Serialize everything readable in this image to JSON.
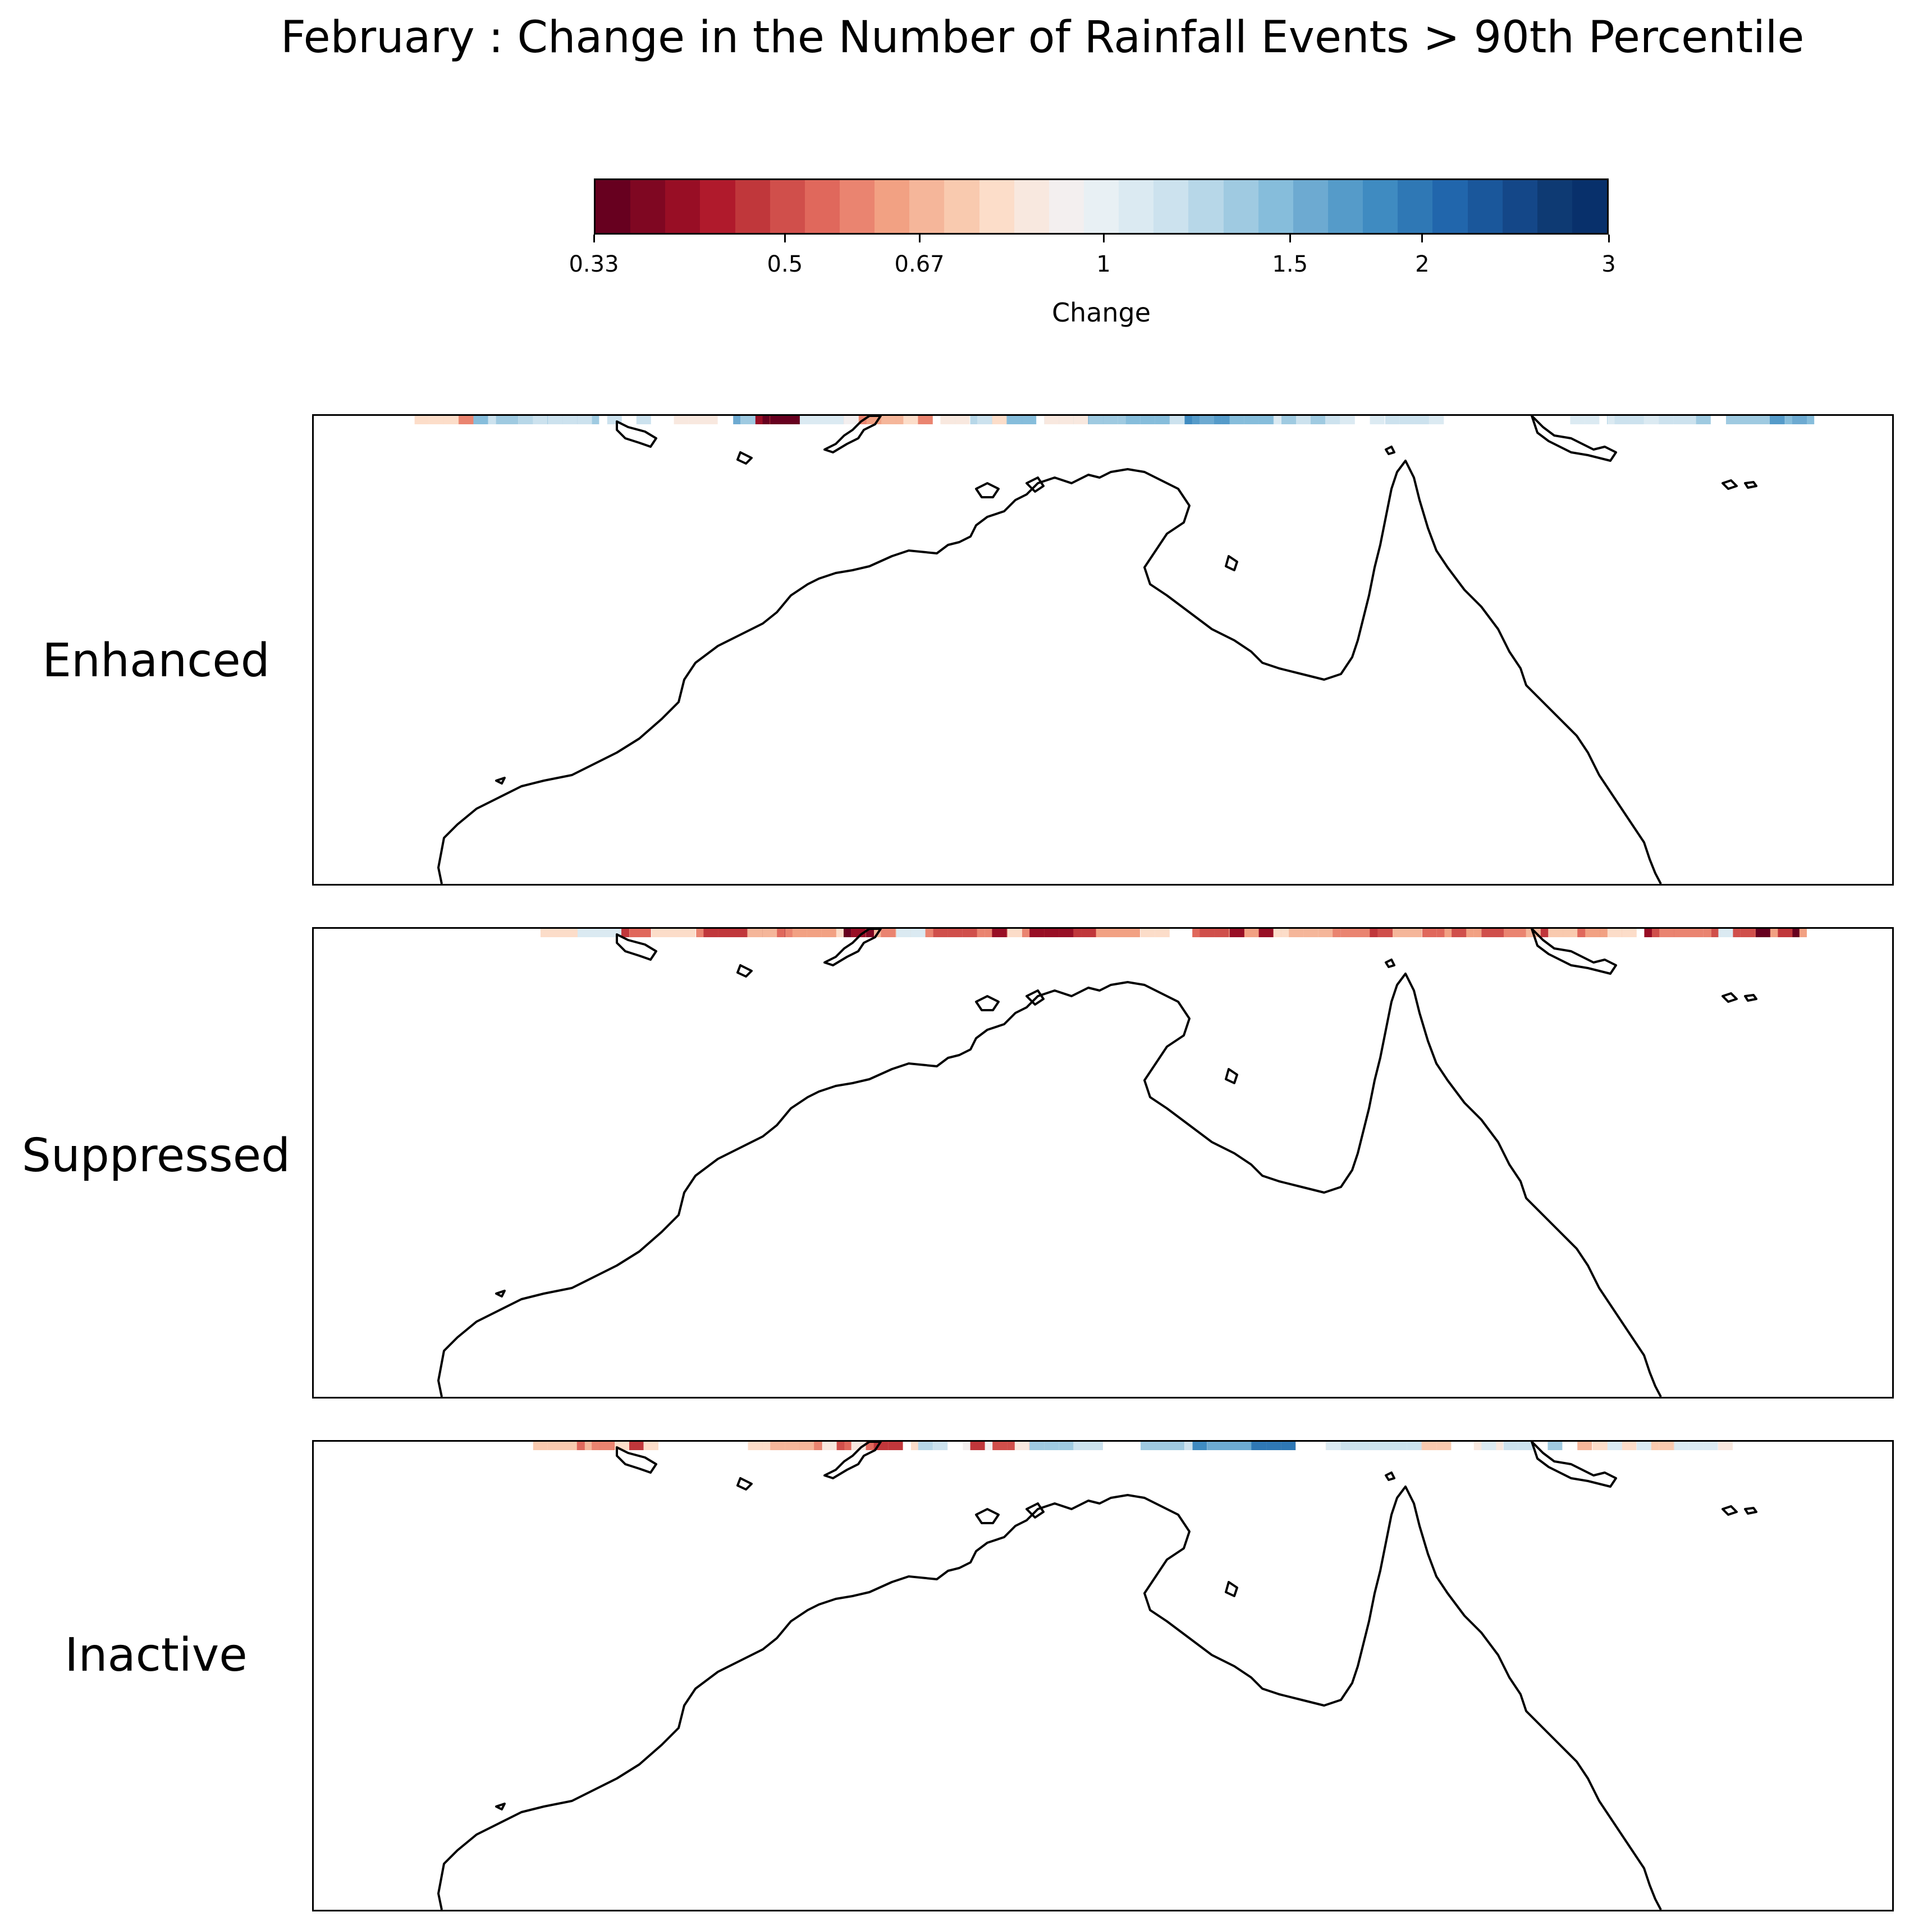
{
  "title": "February : Change in the Number of Rainfall Events > 90th Percentile",
  "colorbar": {
    "label": "Change",
    "tick_labels": [
      "0.33",
      "0.5",
      "0.67",
      "1",
      "1.5",
      "2",
      "3"
    ],
    "tick_values": [
      0.33,
      0.5,
      0.67,
      1,
      1.5,
      2,
      3
    ],
    "scale": "log",
    "range": [
      0.33,
      3
    ],
    "colors": [
      "#67001f",
      "#7f0722",
      "#980e25",
      "#b01a2c",
      "#c0373b",
      "#d04f4b",
      "#e0685c",
      "#ea8470",
      "#f2a183",
      "#f5b69a",
      "#f9caaf",
      "#fcddc9",
      "#f8e8df",
      "#f3efef",
      "#e8f0f4",
      "#dbeaf2",
      "#cce2ee",
      "#b7d7e8",
      "#9fcae1",
      "#86bddb",
      "#6daad1",
      "#559bc9",
      "#3f8bc1",
      "#2f78b5",
      "#2166ac",
      "#1a579b",
      "#144788",
      "#0e3a73",
      "#08306b"
    ]
  },
  "panels": [
    {
      "label": "Enhanced",
      "cells": [
        [
          1.25,
          2.7
        ],
        [
          1.35,
          2.7
        ],
        [
          1.5,
          2.5
        ],
        [
          1.6,
          2.7
        ],
        [
          1.7,
          2.6
        ],
        [
          1.8,
          2.5
        ],
        [
          1.25,
          2.3
        ],
        [
          1.4,
          2.3
        ],
        [
          1.6,
          2.3
        ],
        [
          1.3,
          2.1
        ],
        [
          1.5,
          2.1
        ],
        [
          1.35,
          1.6
        ],
        [
          1.5,
          1.4
        ],
        [
          1.6,
          1.6
        ],
        [
          1.2,
          1.5
        ],
        [
          1.4,
          1.3
        ],
        [
          1.3,
          1.1
        ],
        [
          1.5,
          1.2
        ],
        [
          1.5,
          1.0
        ],
        [
          1.65,
          1.0
        ],
        [
          1.7,
          0.8
        ],
        [
          1.35,
          1.9
        ],
        [
          1.2,
          2.0
        ],
        [
          1.25,
          2.2
        ],
        [
          1.4,
          2.0
        ],
        [
          1.5,
          5.6
        ],
        [
          1.6,
          5.6
        ],
        [
          1.7,
          5.6
        ],
        [
          1.45,
          5.4
        ],
        [
          1.6,
          5.3
        ],
        [
          1.55,
          5.1
        ],
        [
          1.3,
          5.0
        ],
        [
          1.4,
          4.9
        ],
        [
          1.5,
          6.3
        ],
        [
          1.7,
          6.3
        ],
        [
          1.4,
          6.1
        ],
        [
          1.55,
          6.1
        ],
        [
          1.35,
          5.9
        ],
        [
          1.2,
          7.2
        ],
        [
          1.3,
          7.0
        ],
        [
          1.1,
          6.8
        ],
        [
          1.45,
          8.5
        ],
        [
          1.6,
          8.5
        ],
        [
          1.55,
          8.3
        ],
        [
          1.3,
          8.1
        ],
        [
          1.25,
          8.3
        ],
        [
          1.45,
          8.6
        ],
        [
          1.2,
          8.0
        ],
        [
          1.4,
          9.7
        ],
        [
          1.55,
          9.6
        ],
        [
          1.3,
          9.9
        ],
        [
          1.5,
          9.3
        ],
        [
          1.1,
          9.1
        ],
        [
          1.7,
          11.0
        ],
        [
          1.8,
          11.1
        ],
        [
          1.6,
          11.2
        ],
        [
          1.75,
          10.9
        ],
        [
          1.5,
          11.3
        ],
        [
          1.7,
          11.3
        ],
        [
          1.6,
          11.0
        ],
        [
          1.35,
          12.0
        ],
        [
          1.25,
          12.3
        ],
        [
          1.5,
          11.8
        ],
        [
          1.2,
          12.6
        ],
        [
          1.1,
          12.2
        ],
        [
          1.1,
          14.1
        ],
        [
          1.2,
          13.9
        ],
        [
          1.05,
          16.2
        ],
        [
          1.3,
          16.5
        ],
        [
          1.1,
          16.9
        ],
        [
          1.5,
          19.1
        ],
        [
          1.6,
          19.0
        ],
        [
          1.45,
          18.8
        ],
        [
          1.65,
          18.7
        ],
        [
          1.4,
          18.5
        ],
        [
          1.3,
          17.9
        ],
        [
          1.2,
          17.7
        ],
        [
          1.15,
          17.4
        ],
        [
          1.1,
          17.0
        ],
        [
          1.2,
          16.8
        ],
        [
          1.05,
          13.3
        ],
        [
          1.1,
          12.9
        ],
        [
          1.2,
          12.7
        ],
        [
          1.35,
          12.5
        ],
        [
          1.35,
          10.8
        ],
        [
          1.2,
          10.6
        ],
        [
          1.5,
          10.4
        ],
        [
          0.7,
          1.1
        ],
        [
          0.6,
          1.2
        ],
        [
          0.8,
          0.8
        ],
        [
          0.4,
          5.4
        ],
        [
          0.33,
          5.3
        ],
        [
          0.5,
          5.2
        ],
        [
          0.35,
          5.6
        ],
        [
          0.45,
          6.3
        ],
        [
          0.6,
          6.4
        ],
        [
          0.75,
          6.6
        ],
        [
          0.65,
          6.9
        ],
        [
          0.7,
          7.1
        ],
        [
          0.6,
          7.4
        ],
        [
          0.8,
          7.2
        ],
        [
          0.85,
          4.3
        ],
        [
          0.9,
          6.2
        ],
        [
          0.85,
          7.7
        ],
        [
          0.8,
          8.2
        ],
        [
          0.85,
          9.3
        ],
        [
          1.1,
          6.0
        ],
        [
          1.2,
          3.4
        ],
        [
          1.25,
          3.0
        ],
        [
          1.15,
          2.6
        ]
      ]
    },
    {
      "label": "Suppressed",
      "cells": [
        [
          0.45,
          3.0
        ],
        [
          0.4,
          3.2
        ],
        [
          0.5,
          2.8
        ],
        [
          0.6,
          3.1
        ],
        [
          0.55,
          3.4
        ],
        [
          0.45,
          3.3
        ],
        [
          0.38,
          2.9
        ],
        [
          0.7,
          3.5
        ],
        [
          0.8,
          2.5
        ],
        [
          0.6,
          4.6
        ],
        [
          0.5,
          4.8
        ],
        [
          0.45,
          5.0
        ],
        [
          0.4,
          5.2
        ],
        [
          0.35,
          5.4
        ],
        [
          0.55,
          5.6
        ],
        [
          0.6,
          5.8
        ],
        [
          0.7,
          5.1
        ],
        [
          0.45,
          4.7
        ],
        [
          0.5,
          6.0
        ],
        [
          0.6,
          6.2
        ],
        [
          0.7,
          6.4
        ],
        [
          0.4,
          6.3
        ],
        [
          0.33,
          6.1
        ],
        [
          0.38,
          6.5
        ],
        [
          0.8,
          6.0
        ],
        [
          0.65,
          5.9
        ],
        [
          0.55,
          7.2
        ],
        [
          0.45,
          7.4
        ],
        [
          0.6,
          7.6
        ],
        [
          0.7,
          7.0
        ],
        [
          0.8,
          7.8
        ],
        [
          0.5,
          8.0
        ],
        [
          0.6,
          8.3
        ],
        [
          0.7,
          8.6
        ],
        [
          0.45,
          8.4
        ],
        [
          0.4,
          8.2
        ],
        [
          0.8,
          8.8
        ],
        [
          0.6,
          9.0
        ],
        [
          0.5,
          9.3
        ],
        [
          0.7,
          9.5
        ],
        [
          0.55,
          9.8
        ],
        [
          0.65,
          10.0
        ],
        [
          0.45,
          9.6
        ],
        [
          0.55,
          11.1
        ],
        [
          0.6,
          11.4
        ],
        [
          0.7,
          11.7
        ],
        [
          0.5,
          11.2
        ],
        [
          0.45,
          11.5
        ],
        [
          0.65,
          12.0
        ],
        [
          0.8,
          12.3
        ],
        [
          0.4,
          11.8
        ],
        [
          0.6,
          13.4
        ],
        [
          0.45,
          13.6
        ],
        [
          0.5,
          13.8
        ],
        [
          0.7,
          14.0
        ],
        [
          0.8,
          14.2
        ],
        [
          0.55,
          14.4
        ],
        [
          0.65,
          14.7
        ],
        [
          0.75,
          15.0
        ],
        [
          0.4,
          14.9
        ],
        [
          0.5,
          15.2
        ],
        [
          0.6,
          15.5
        ],
        [
          0.7,
          15.8
        ],
        [
          0.45,
          16.0
        ],
        [
          0.55,
          16.3
        ],
        [
          0.65,
          16.6
        ],
        [
          0.8,
          16.9
        ],
        [
          0.4,
          17.2
        ],
        [
          0.5,
          17.5
        ],
        [
          0.6,
          17.8
        ],
        [
          0.7,
          18.1
        ],
        [
          0.45,
          18.4
        ],
        [
          0.55,
          18.7
        ],
        [
          0.65,
          19.0
        ],
        [
          0.35,
          18.9
        ],
        [
          0.45,
          19.2
        ],
        [
          0.5,
          18.3
        ],
        [
          0.6,
          17.6
        ],
        [
          0.75,
          16.1
        ],
        [
          0.5,
          14.6
        ],
        [
          0.6,
          13.1
        ],
        [
          0.7,
          12.6
        ],
        [
          0.8,
          10.4
        ],
        [
          0.6,
          6.7
        ],
        [
          0.5,
          7.8
        ],
        [
          0.4,
          9.1
        ],
        [
          0.55,
          3.7
        ],
        [
          0.7,
          4.2
        ],
        [
          0.8,
          4.0
        ],
        [
          1.1,
          3.0
        ],
        [
          1.05,
          7.3
        ],
        [
          1.1,
          18.2
        ]
      ]
    },
    {
      "label": "Inactive",
      "cells": [
        [
          0.4,
          3.0
        ],
        [
          0.45,
          3.3
        ],
        [
          0.5,
          2.8
        ],
        [
          0.6,
          3.1
        ],
        [
          0.7,
          2.6
        ],
        [
          0.8,
          3.5
        ],
        [
          0.55,
          2.9
        ],
        [
          0.75,
          2.4
        ],
        [
          0.45,
          6.2
        ],
        [
          0.5,
          6.4
        ],
        [
          0.4,
          6.0
        ],
        [
          0.55,
          6.6
        ],
        [
          0.6,
          5.9
        ],
        [
          0.45,
          6.8
        ],
        [
          0.75,
          5.0
        ],
        [
          0.8,
          5.3
        ],
        [
          0.7,
          5.6
        ],
        [
          0.85,
          6.3
        ],
        [
          0.8,
          7.5
        ],
        [
          0.9,
          8.2
        ],
        [
          0.75,
          11.7
        ],
        [
          0.8,
          12.3
        ],
        [
          0.85,
          12.9
        ],
        [
          0.8,
          13.6
        ],
        [
          0.75,
          14.2
        ],
        [
          0.85,
          14.9
        ],
        [
          0.7,
          16.1
        ],
        [
          0.8,
          16.7
        ],
        [
          0.75,
          17.4
        ],
        [
          0.85,
          18.0
        ],
        [
          0.45,
          8.3
        ],
        [
          0.5,
          8.6
        ],
        [
          0.85,
          8.9
        ],
        [
          0.8,
          9.5
        ],
        [
          1.3,
          9.3
        ],
        [
          1.2,
          9.5
        ],
        [
          1.35,
          9.1
        ],
        [
          1.3,
          10.5
        ],
        [
          1.2,
          10.8
        ],
        [
          1.4,
          10.6
        ],
        [
          1.5,
          11.7
        ],
        [
          1.8,
          11.6
        ],
        [
          1.9,
          11.3
        ],
        [
          2.0,
          12.1
        ],
        [
          1.6,
          11.5
        ],
        [
          1.2,
          7.6
        ],
        [
          1.25,
          7.4
        ],
        [
          1.1,
          13.1
        ],
        [
          1.15,
          13.8
        ],
        [
          1.2,
          15.3
        ],
        [
          1.35,
          15.7
        ],
        [
          1.1,
          17.8
        ],
        [
          1.15,
          13.3
        ],
        [
          1.05,
          16.9
        ],
        [
          1.1,
          15.2
        ]
      ]
    }
  ]
}
